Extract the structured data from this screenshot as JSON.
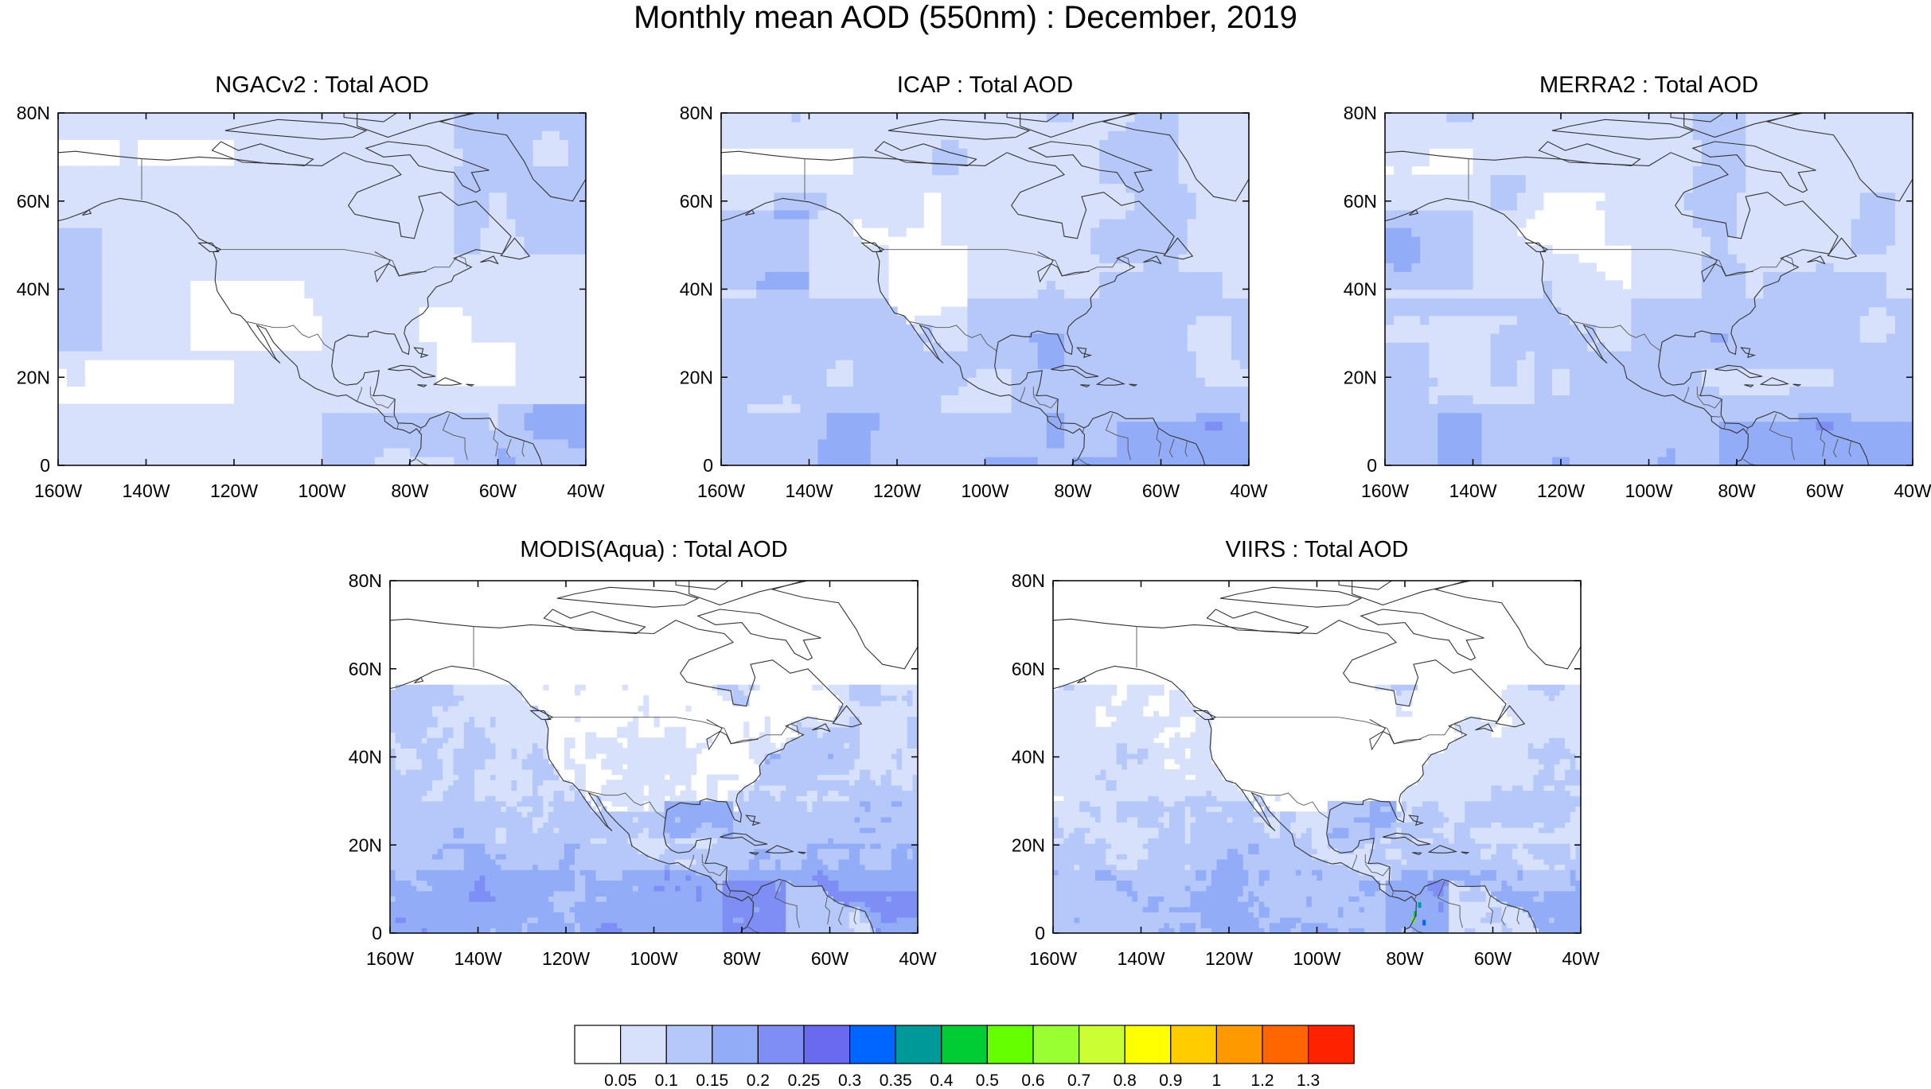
{
  "title": "Monthly mean AOD (550nm) : December, 2019",
  "colors": {
    "levels": [
      "#ffffff",
      "#d7e1fb",
      "#b5c8f9",
      "#93acf8",
      "#7e8ef5",
      "#6a6af1",
      "#0066ff",
      "#009999",
      "#00cc33",
      "#66ff00",
      "#99ff33",
      "#ccff33",
      "#ffff00",
      "#ffcc00",
      "#ff9900",
      "#ff6600",
      "#ff2200"
    ],
    "coast": "#333333"
  },
  "chart_data": [
    {
      "type": "heatmap",
      "title": "NGACv2 : Total AOD",
      "x_ticks": [
        "160W",
        "140W",
        "120W",
        "100W",
        "80W",
        "60W",
        "40W"
      ],
      "y_ticks": [
        "80N",
        "60N",
        "40N",
        "20N",
        "0"
      ],
      "xlim": [
        -160,
        -40
      ],
      "ylim": [
        0,
        80
      ],
      "field": "smooth model",
      "notes_regions": [
        {
          "lon": -80,
          "lat": 8,
          "level": 3
        },
        {
          "lon": -45,
          "lat": 10,
          "level": 3
        },
        {
          "lon": -120,
          "lat": 35,
          "level": 0
        }
      ]
    },
    {
      "type": "heatmap",
      "title": "ICAP : Total AOD",
      "x_ticks": [
        "160W",
        "140W",
        "120W",
        "100W",
        "80W",
        "60W",
        "40W"
      ],
      "y_ticks": [
        "80N",
        "60N",
        "40N",
        "20N",
        "0"
      ],
      "xlim": [
        -160,
        -40
      ],
      "ylim": [
        0,
        80
      ]
    },
    {
      "type": "heatmap",
      "title": "MERRA2 : Total AOD",
      "x_ticks": [
        "160W",
        "140W",
        "120W",
        "100W",
        "80W",
        "60W",
        "40W"
      ],
      "y_ticks": [
        "80N",
        "60N",
        "40N",
        "20N",
        "0"
      ],
      "xlim": [
        -160,
        -40
      ],
      "ylim": [
        0,
        80
      ]
    },
    {
      "type": "heatmap",
      "title": "MODIS(Aqua) : Total AOD",
      "x_ticks": [
        "160W",
        "140W",
        "120W",
        "100W",
        "80W",
        "60W",
        "40W"
      ],
      "y_ticks": [
        "80N",
        "60N",
        "40N",
        "20N",
        "0"
      ],
      "xlim": [
        -160,
        -40
      ],
      "ylim": [
        0,
        80
      ]
    },
    {
      "type": "heatmap",
      "title": "VIIRS : Total AOD",
      "x_ticks": [
        "160W",
        "140W",
        "120W",
        "100W",
        "80W",
        "60W",
        "40W"
      ],
      "y_ticks": [
        "80N",
        "60N",
        "40N",
        "20N",
        "0"
      ],
      "xlim": [
        -160,
        -40
      ],
      "ylim": [
        0,
        80
      ]
    }
  ],
  "colorbar": {
    "labels": [
      "0.05",
      "0.1",
      "0.15",
      "0.2",
      "0.25",
      "0.3",
      "0.35",
      "0.4",
      "0.5",
      "0.6",
      "0.7",
      "0.8",
      "0.9",
      "1",
      "1.2",
      "1.3"
    ]
  }
}
